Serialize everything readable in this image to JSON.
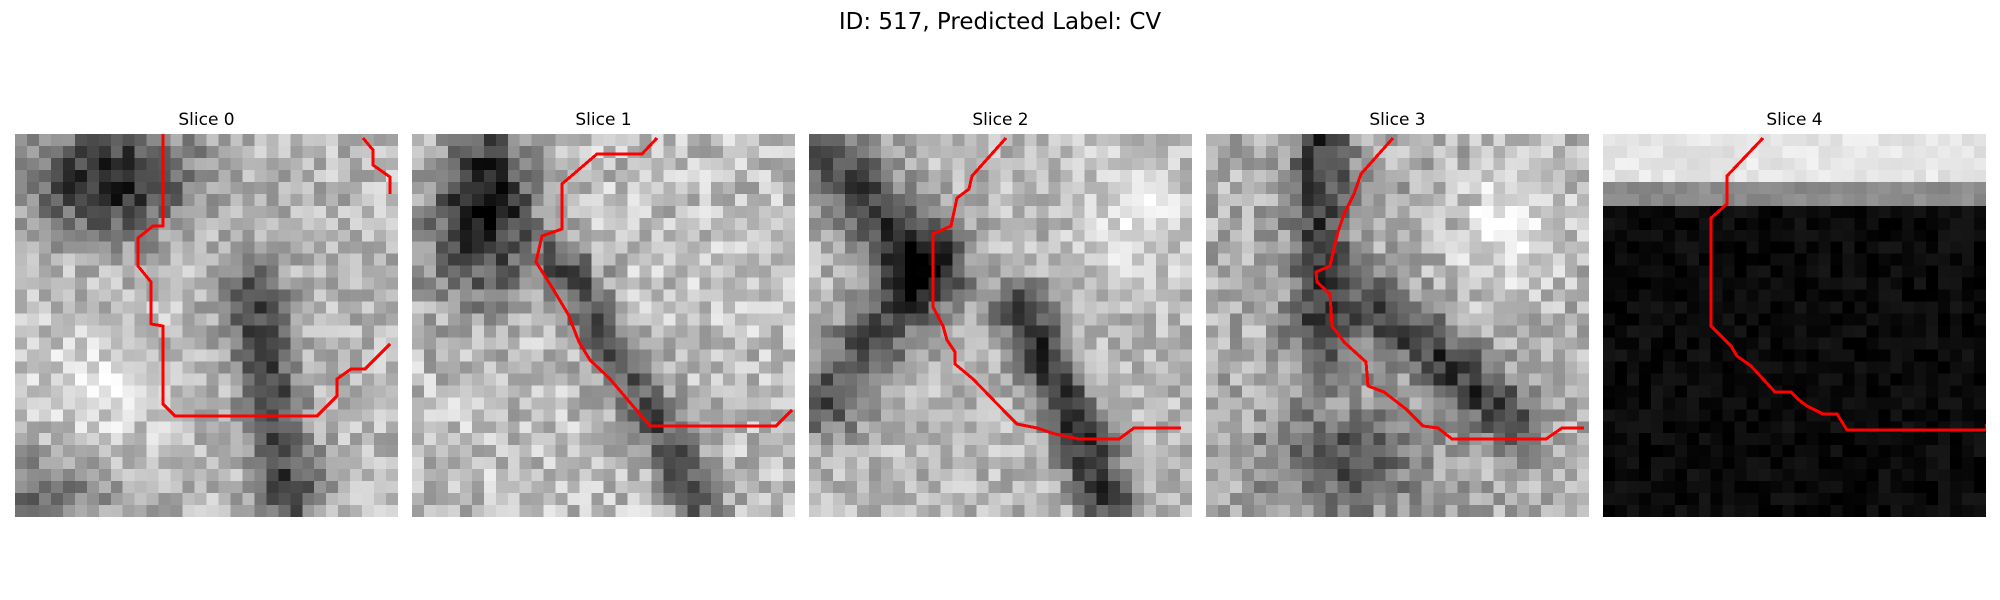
{
  "figure": {
    "title": "ID: 517, Predicted Label: CV"
  },
  "panels": [
    {
      "title": "Slice 0"
    },
    {
      "title": "Slice 1"
    },
    {
      "title": "Slice 2"
    },
    {
      "title": "Slice 3"
    },
    {
      "title": "Slice 4"
    }
  ],
  "colors": {
    "contour": "#ff0000",
    "background": "#ffffff"
  }
}
